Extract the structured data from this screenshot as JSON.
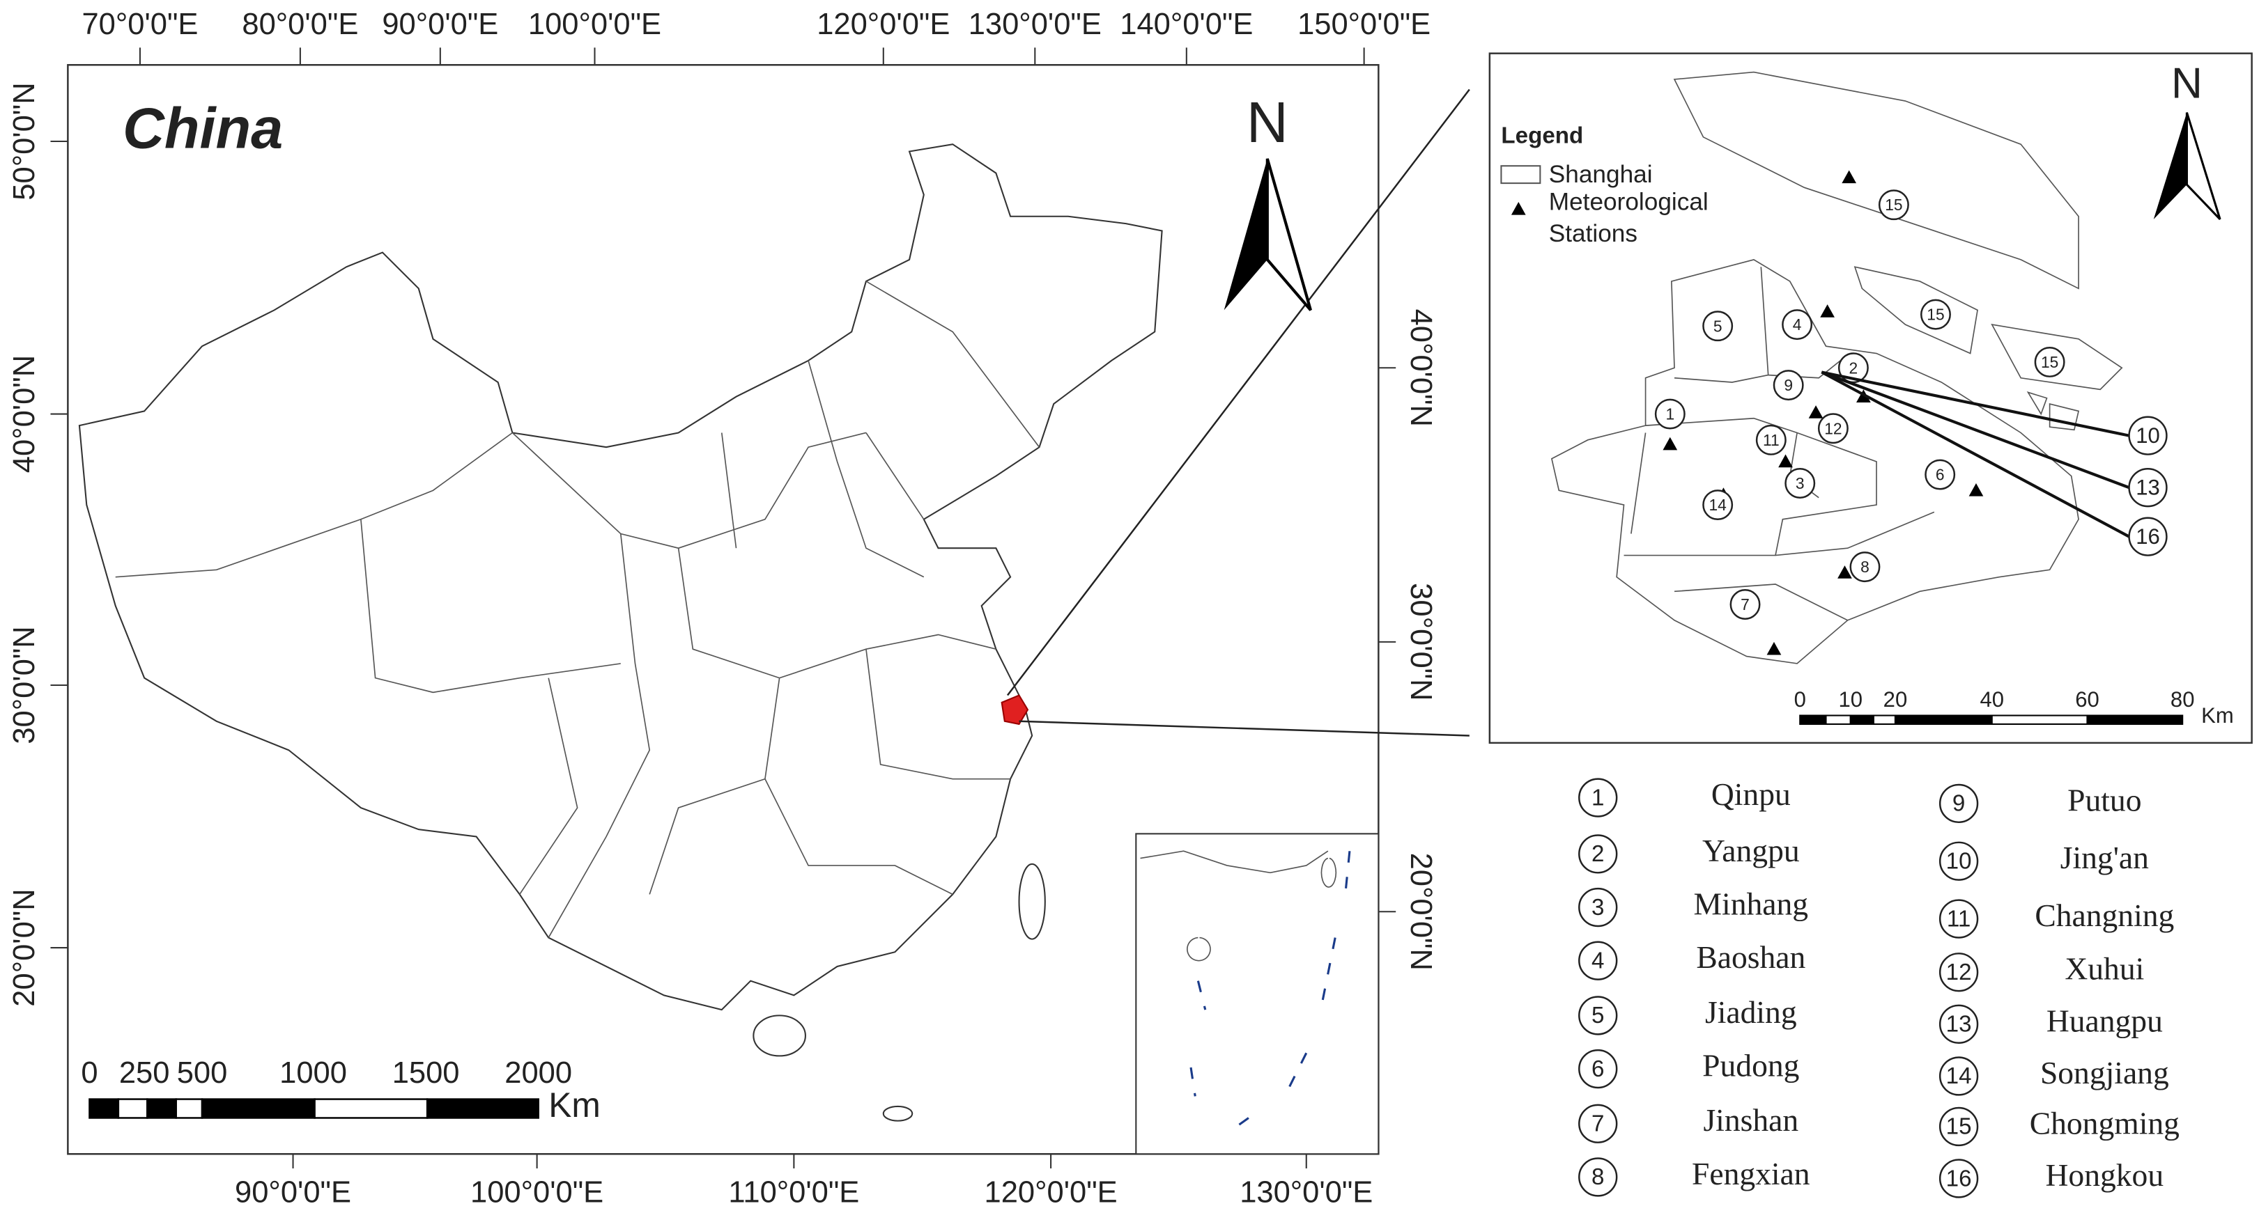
{
  "main_map": {
    "title": "China",
    "top_labels": [
      "70°0'0\"E",
      "80°0'0\"E",
      "90°0'0\"E",
      "100°0'0\"E",
      "120°0'0\"E",
      "130°0'0\"E",
      "140°0'0\"E",
      "150°0'0\"E"
    ],
    "bottom_labels": [
      "90°0'0\"E",
      "100°0'0\"E",
      "110°0'0\"E",
      "120°0'0\"E",
      "130°0'0\"E"
    ],
    "left_labels": [
      "50°0'0\"N",
      "40°0'0\"N",
      "30°0'0\"N",
      "20°0'0\"N"
    ],
    "right_labels": [
      "40°0'0\"N",
      "30°0'0\"N",
      "20°0'0\"N"
    ],
    "north": "N",
    "scale": {
      "ticks": [
        0,
        250,
        500,
        1000,
        1500,
        2000
      ],
      "unit": "Km"
    }
  },
  "inset_map": {
    "legend": {
      "title": "Legend",
      "shanghai": "Shanghai",
      "stations": [
        "Meteorological",
        "Stations"
      ]
    },
    "north": "N",
    "scale": {
      "ticks": [
        0,
        10,
        20,
        40,
        60,
        80
      ],
      "unit": "Km"
    },
    "district_labels": [
      15,
      15,
      15,
      5,
      4,
      2,
      9,
      1,
      11,
      12,
      3,
      14,
      6,
      8,
      7,
      10,
      13,
      16
    ]
  },
  "districts": [
    {
      "number": 1,
      "name": "Qinpu"
    },
    {
      "number": 2,
      "name": "Yangpu"
    },
    {
      "number": 3,
      "name": "Minhang"
    },
    {
      "number": 4,
      "name": "Baoshan"
    },
    {
      "number": 5,
      "name": "Jiading"
    },
    {
      "number": 6,
      "name": "Pudong"
    },
    {
      "number": 7,
      "name": "Jinshan"
    },
    {
      "number": 8,
      "name": "Fengxian"
    },
    {
      "number": 9,
      "name": "Putuo"
    },
    {
      "number": 10,
      "name": "Jing'an"
    },
    {
      "number": 11,
      "name": "Changning"
    },
    {
      "number": 12,
      "name": "Xuhui"
    },
    {
      "number": 13,
      "name": "Huangpu"
    },
    {
      "number": 14,
      "name": "Songjiang"
    },
    {
      "number": 15,
      "name": "Chongming"
    },
    {
      "number": 16,
      "name": "Hongkou"
    }
  ]
}
